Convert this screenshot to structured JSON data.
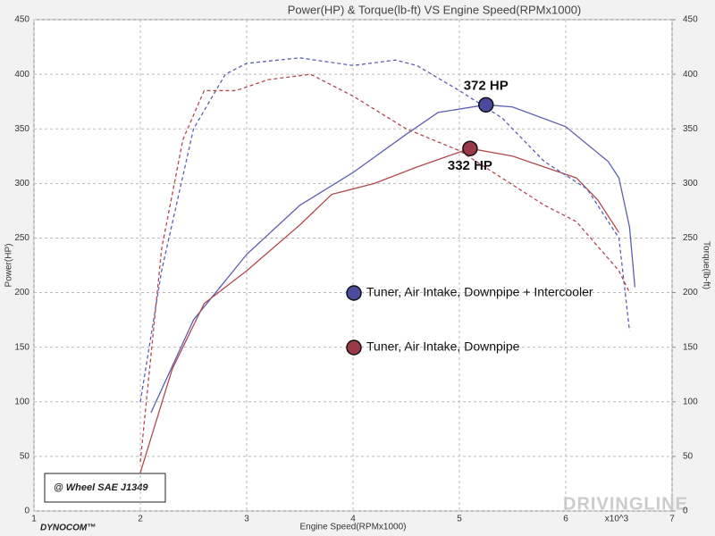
{
  "chart_data": {
    "type": "line",
    "title": "Power(HP) & Torque(lb-ft) VS Engine Speed(RPMx1000)",
    "x_label": "Engine Speed(RPMx1000)",
    "y_label": "Power(HP)",
    "y2_label": "Torque(lb-ft)",
    "x_unit_note": "x10^3",
    "note": "@ Wheel SAE J1349",
    "brand": "DYNOCOM™",
    "watermark": "DRIVINGLINE",
    "xlim": [
      1,
      7
    ],
    "xticks": [
      1,
      2,
      3,
      4,
      5,
      6,
      7
    ],
    "ylim": [
      0,
      450
    ],
    "yticks": [
      0,
      50,
      100,
      150,
      200,
      250,
      300,
      350,
      400,
      450
    ],
    "y2lim": [
      0,
      450
    ],
    "y2ticks": [
      0,
      50,
      100,
      150,
      200,
      250,
      300,
      350,
      400,
      450
    ],
    "grid": true,
    "series": [
      {
        "color": "#5b5fb0",
        "x": [
          2.1,
          2.5,
          3.0,
          3.5,
          4.0,
          4.5,
          4.8,
          5.25,
          5.5,
          6.0,
          6.4,
          6.5,
          6.6,
          6.65
        ],
        "values": [
          90,
          175,
          235,
          280,
          310,
          345,
          365,
          372,
          370,
          352,
          320,
          305,
          260,
          205
        ]
      },
      {
        "color": "#b0494f",
        "x": [
          2.0,
          2.3,
          2.6,
          3.0,
          3.5,
          3.8,
          4.2,
          4.6,
          5.1,
          5.5,
          5.8,
          6.1,
          6.3,
          6.5
        ],
        "values": [
          35,
          130,
          190,
          220,
          262,
          290,
          300,
          315,
          332,
          325,
          315,
          305,
          285,
          255
        ]
      },
      {
        "color": "#5b5fb0",
        "axis": "y2",
        "dash": true,
        "x": [
          2.0,
          2.2,
          2.5,
          2.8,
          3.0,
          3.5,
          4.0,
          4.4,
          4.6,
          5.0,
          5.4,
          5.8,
          6.2,
          6.5,
          6.6
        ],
        "values": [
          100,
          220,
          350,
          400,
          410,
          415,
          408,
          413,
          408,
          385,
          360,
          320,
          295,
          250,
          165
        ]
      },
      {
        "color": "#b0494f",
        "axis": "y2",
        "dash": true,
        "x": [
          2.0,
          2.2,
          2.4,
          2.6,
          2.9,
          3.2,
          3.6,
          4.0,
          4.5,
          5.0,
          5.4,
          5.8,
          6.1,
          6.5,
          6.6
        ],
        "values": [
          45,
          240,
          340,
          385,
          385,
          395,
          400,
          380,
          350,
          330,
          305,
          280,
          265,
          220,
          200
        ]
      }
    ],
    "peaks": [
      {
        "label": "372 HP",
        "x": 5.25,
        "value": 372,
        "color": "#4a4aa0"
      },
      {
        "label": "332 HP",
        "x": 5.1,
        "value": 332,
        "color": "#9a3a48"
      }
    ],
    "legend": [
      {
        "label": "Tuner, Air Intake, Downpipe + Intercooler",
        "color": "#4a4aa0"
      },
      {
        "label": "Tuner, Air Intake, Downpipe",
        "color": "#9a3a48"
      }
    ]
  }
}
